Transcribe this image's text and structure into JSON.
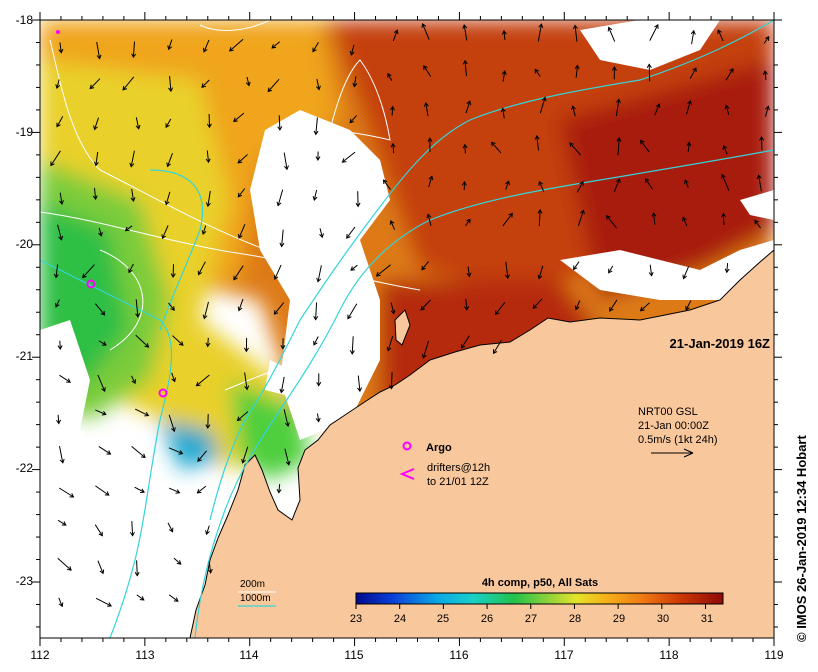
{
  "map": {
    "axes": {
      "x_ticks": [
        "112",
        "113",
        "114",
        "115",
        "116",
        "117",
        "118",
        "119"
      ],
      "y_ticks": [
        "-18",
        "-19",
        "-20",
        "-21",
        "-22",
        "-23"
      ],
      "lon_range": [
        112,
        119
      ],
      "lat_range": [
        -23.55,
        -18
      ]
    },
    "date_label": "21-Jan-2019 16Z",
    "current_model": {
      "line1": "NRT00 GSL",
      "line2": "21-Jan 00:00Z",
      "line3": "0.5m/s (1kt 24h)"
    },
    "legend": {
      "argo_label": "Argo",
      "drifters_line1": "drifters@12h",
      "drifters_line2": "to 21/01 12Z",
      "isobath_200": "200m",
      "isobath_1000": "1000m"
    },
    "colorbar": {
      "title": "4h comp, p50, All Sats",
      "ticks": [
        "23",
        "24",
        "25",
        "26",
        "27",
        "28",
        "29",
        "30",
        "31"
      ],
      "min": 23,
      "max": 31.4
    },
    "credit": "© IMOS 26-Jan-2019 12:34 Hobart",
    "colors": {
      "land": "#f9c79c",
      "coast": "#000000",
      "isobath": "#36d4d8",
      "argo": "#ff00ff",
      "drifter": "#ff00ff"
    }
  }
}
